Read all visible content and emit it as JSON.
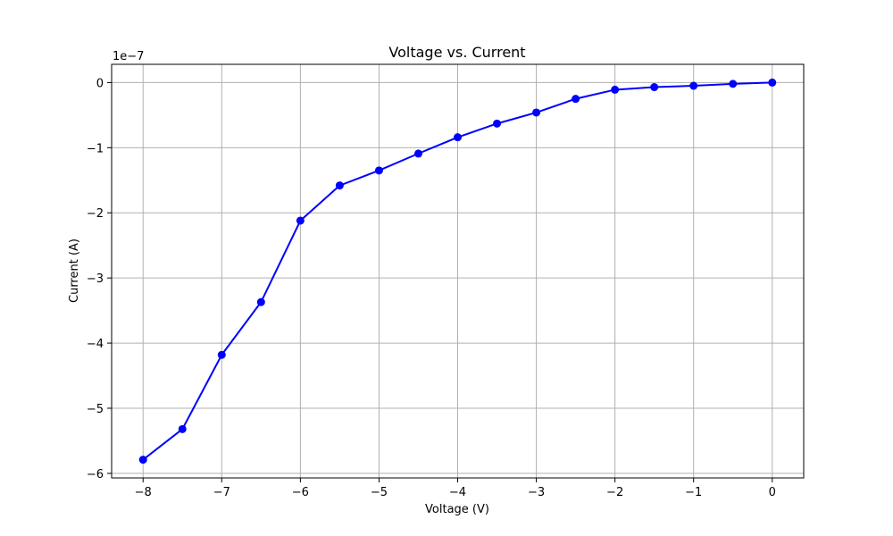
{
  "chart_data": {
    "type": "line",
    "title": "Voltage vs. Current",
    "xlabel": "Voltage (V)",
    "ylabel": "Current (A)",
    "y_offset_label": "1e−7",
    "x_ticks": [
      "−8",
      "−7",
      "−6",
      "−5",
      "−4",
      "−3",
      "−2",
      "−1",
      "0"
    ],
    "x_tick_values": [
      -8,
      -7,
      -6,
      -5,
      -4,
      -3,
      -2,
      -1,
      0
    ],
    "y_ticks": [
      "0",
      "−1",
      "−2",
      "−3",
      "−4",
      "−5",
      "−6"
    ],
    "y_tick_values": [
      0,
      -1,
      -2,
      -3,
      -4,
      -5,
      -6
    ],
    "xlim": [
      -8.4,
      0.4
    ],
    "ylim": [
      -6.07,
      0.28
    ],
    "grid": true,
    "color": "#0000ff",
    "series": [
      {
        "x": [
          -8,
          -7.5,
          -7,
          -6.5,
          -6,
          -5.5,
          -5,
          -4.5,
          -4,
          -3.5,
          -3,
          -2.5,
          -2,
          -1.5,
          -1,
          -0.5,
          0
        ],
        "y": [
          -5.79,
          -5.32,
          -4.18,
          -3.37,
          -2.12,
          -1.58,
          -1.35,
          -1.09,
          -0.84,
          -0.63,
          -0.46,
          -0.25,
          -0.11,
          -0.07,
          -0.05,
          -0.02,
          0
        ]
      }
    ]
  }
}
